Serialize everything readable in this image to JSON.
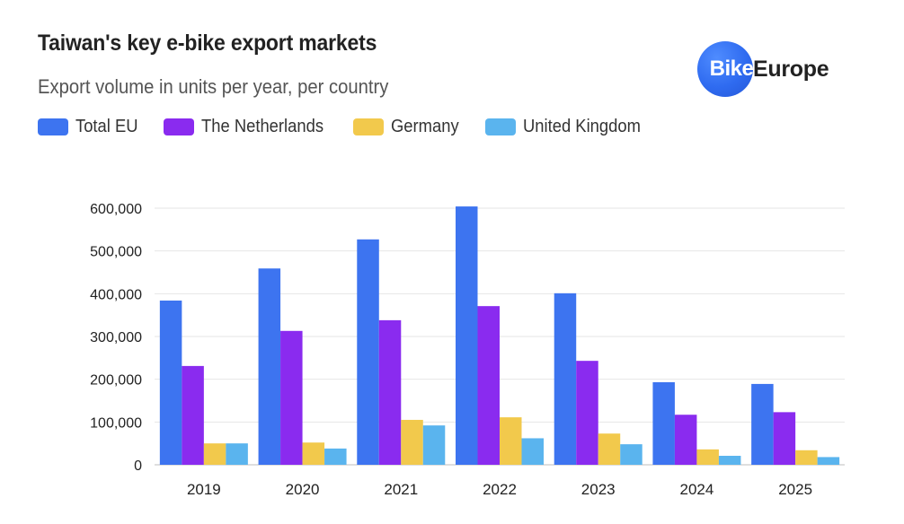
{
  "header": {
    "title": "Taiwan's key e-bike export markets",
    "subtitle": "Export volume in units per year, per country"
  },
  "logo": {
    "circle_text": "Bike",
    "text": "Europe",
    "icon": "bike-europe-logo"
  },
  "chart_data": {
    "type": "bar",
    "title": "Taiwan's key e-bike export markets",
    "subtitle": "Export volume in units per year, per country",
    "xlabel": "",
    "ylabel": "",
    "categories": [
      "2019",
      "2020",
      "2021",
      "2022",
      "2023",
      "2024",
      "2025"
    ],
    "series": [
      {
        "name": "Total EU",
        "color": "#3d74f0",
        "values": [
          384000,
          459000,
          527000,
          604000,
          401000,
          193000,
          189000
        ]
      },
      {
        "name": "The Netherlands",
        "color": "#8a2bef",
        "values": [
          231000,
          313000,
          338000,
          371000,
          243000,
          117000,
          123000
        ]
      },
      {
        "name": "Germany",
        "color": "#f2c94c",
        "values": [
          50000,
          52000,
          105000,
          111000,
          73000,
          36000,
          34000
        ]
      },
      {
        "name": "United Kingdom",
        "color": "#5ab4ee",
        "values": [
          50000,
          38000,
          92000,
          62000,
          48000,
          21000,
          18000
        ]
      }
    ],
    "ylim": [
      0,
      600000
    ],
    "yticks": [
      0,
      100000,
      200000,
      300000,
      400000,
      500000,
      600000
    ],
    "ytick_labels": [
      "0",
      "100,000",
      "200,000",
      "300,000",
      "400,000",
      "500,000",
      "600,000"
    ],
    "grid": true,
    "legend_position": "top-left"
  }
}
